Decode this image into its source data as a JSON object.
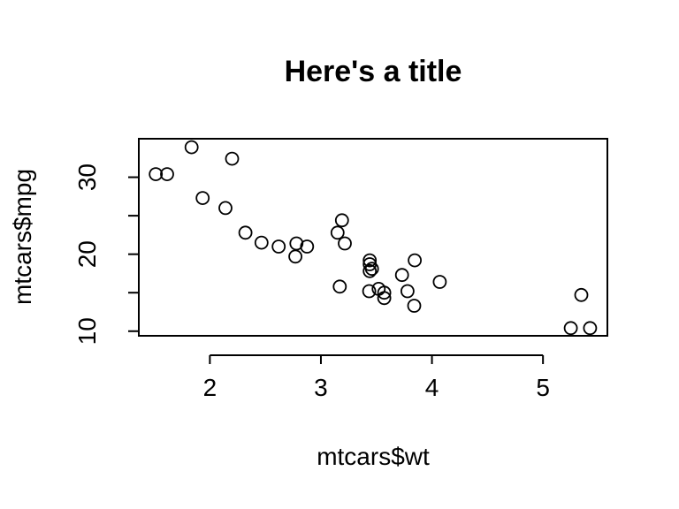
{
  "chart_data": {
    "type": "scatter",
    "title": "Here's a title",
    "xlabel": "mtcars$wt",
    "ylabel": "mtcars$mpg",
    "xlim": [
      1.36,
      5.58
    ],
    "ylim": [
      9.4,
      35.0
    ],
    "x_ticks": [
      2,
      3,
      4,
      5
    ],
    "y_ticks": [
      10,
      15,
      20,
      25,
      30
    ],
    "y_tick_labels": [
      "10",
      "",
      "20",
      "",
      "30"
    ],
    "grid": false,
    "points": [
      {
        "x": 2.62,
        "y": 21.0
      },
      {
        "x": 2.875,
        "y": 21.0
      },
      {
        "x": 2.32,
        "y": 22.8
      },
      {
        "x": 3.215,
        "y": 21.4
      },
      {
        "x": 3.44,
        "y": 18.7
      },
      {
        "x": 3.46,
        "y": 18.1
      },
      {
        "x": 3.57,
        "y": 14.3
      },
      {
        "x": 3.19,
        "y": 24.4
      },
      {
        "x": 3.15,
        "y": 22.8
      },
      {
        "x": 3.44,
        "y": 19.2
      },
      {
        "x": 3.44,
        "y": 17.8
      },
      {
        "x": 4.07,
        "y": 16.4
      },
      {
        "x": 3.73,
        "y": 17.3
      },
      {
        "x": 3.78,
        "y": 15.2
      },
      {
        "x": 5.25,
        "y": 10.4
      },
      {
        "x": 5.424,
        "y": 10.4
      },
      {
        "x": 5.345,
        "y": 14.7
      },
      {
        "x": 2.2,
        "y": 32.4
      },
      {
        "x": 1.615,
        "y": 30.4
      },
      {
        "x": 1.835,
        "y": 33.9
      },
      {
        "x": 2.465,
        "y": 21.5
      },
      {
        "x": 3.52,
        "y": 15.5
      },
      {
        "x": 3.435,
        "y": 15.2
      },
      {
        "x": 3.84,
        "y": 13.3
      },
      {
        "x": 3.845,
        "y": 19.2
      },
      {
        "x": 1.935,
        "y": 27.3
      },
      {
        "x": 2.14,
        "y": 26.0
      },
      {
        "x": 1.513,
        "y": 30.4
      },
      {
        "x": 3.17,
        "y": 15.8
      },
      {
        "x": 2.77,
        "y": 19.7
      },
      {
        "x": 3.57,
        "y": 15.0
      },
      {
        "x": 2.78,
        "y": 21.4
      }
    ]
  }
}
